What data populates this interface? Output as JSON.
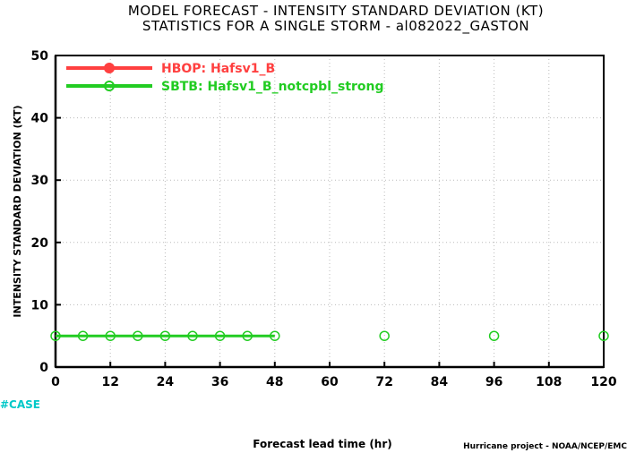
{
  "chart_data": {
    "type": "line",
    "title": "MODEL FORECAST - INTENSITY STANDARD DEVIATION (KT)",
    "subtitle": "STATISTICS FOR A SINGLE STORM - al082022_GASTON",
    "xlabel": "Forecast lead time (hr)",
    "ylabel": "INTENSITY STANDARD DEVIATION (KT)",
    "xlim": [
      0,
      120
    ],
    "ylim": [
      0,
      50
    ],
    "x_ticks": [
      "0",
      "12",
      "24",
      "36",
      "48",
      "60",
      "72",
      "84",
      "96",
      "108",
      "120"
    ],
    "y_ticks": [
      "0",
      "10",
      "20",
      "30",
      "40",
      "50"
    ],
    "grid": true,
    "legend_position": "top-left",
    "series": [
      {
        "name": "HBOP: Hafsv1_B",
        "color": "#ff4040",
        "x": [],
        "y": []
      },
      {
        "name": "SBTB: Hafsv1_B_notcpbl_strong",
        "color": "#22cc22",
        "x": [
          0,
          6,
          12,
          18,
          24,
          30,
          36,
          42,
          48
        ],
        "y": [
          5,
          5,
          5,
          5,
          5,
          5,
          5,
          5,
          5
        ],
        "extra_points_x": [
          72,
          96,
          120
        ],
        "extra_points_y": [
          5,
          5,
          5
        ]
      }
    ],
    "case_label": "#CASE",
    "case_color": "#00c8c8",
    "credit": "Hurricane project - NOAA/NCEP/EMC"
  }
}
